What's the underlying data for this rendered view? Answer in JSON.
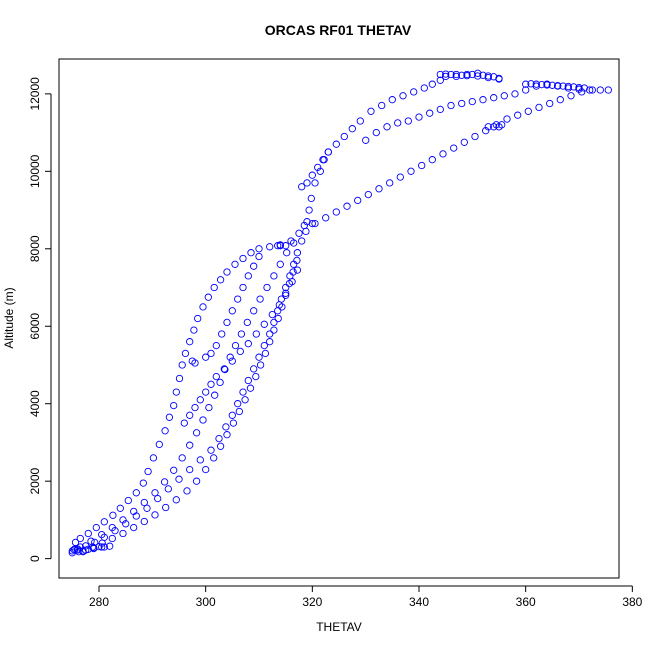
{
  "chart_data": {
    "type": "scatter",
    "title": "ORCAS RF01 THETAV",
    "xlabel": "THETAV",
    "ylabel": "Altitude (m)",
    "xlim": [
      272.5,
      377.5
    ],
    "ylim": [
      -500,
      12900
    ],
    "xticks": [
      280,
      300,
      320,
      340,
      360,
      380
    ],
    "yticks": [
      0,
      2000,
      4000,
      6000,
      8000,
      10000,
      12000
    ],
    "marker": "open-circle",
    "grid": false,
    "color": "#0000ff",
    "series": [
      {
        "name": "",
        "points": [
          [
            275,
            150
          ],
          [
            275.3,
            230
          ],
          [
            276.2,
            180
          ],
          [
            277.5,
            220
          ],
          [
            279,
            260
          ],
          [
            280.5,
            300
          ],
          [
            282,
            320
          ],
          [
            275.6,
            420
          ],
          [
            276.5,
            520
          ],
          [
            278,
            650
          ],
          [
            279.5,
            800
          ],
          [
            281,
            950
          ],
          [
            282.6,
            1120
          ],
          [
            284,
            1300
          ],
          [
            285.5,
            1500
          ],
          [
            287,
            1700
          ],
          [
            288.3,
            1950
          ],
          [
            289.2,
            2250
          ],
          [
            290.2,
            2600
          ],
          [
            291.3,
            2950
          ],
          [
            292.4,
            3300
          ],
          [
            293.2,
            3650
          ],
          [
            294,
            3950
          ],
          [
            294.5,
            4300
          ],
          [
            295.1,
            4650
          ],
          [
            295.6,
            5000
          ],
          [
            296.2,
            5300
          ],
          [
            297,
            5600
          ],
          [
            297.8,
            5900
          ],
          [
            298.5,
            6200
          ],
          [
            299.5,
            6500
          ],
          [
            300.5,
            6750
          ],
          [
            301.6,
            7000
          ],
          [
            302.8,
            7200
          ],
          [
            304,
            7400
          ],
          [
            305.5,
            7600
          ],
          [
            307,
            7750
          ],
          [
            308.5,
            7900
          ],
          [
            310,
            8000
          ],
          [
            312,
            8050
          ],
          [
            314,
            8080
          ],
          [
            316,
            8200
          ],
          [
            317.5,
            8400
          ],
          [
            318.5,
            8600
          ],
          [
            320,
            8650
          ],
          [
            319,
            8700
          ],
          [
            319.4,
            9000
          ],
          [
            319.8,
            9300
          ],
          [
            320.5,
            9700
          ],
          [
            321.5,
            10000
          ],
          [
            322.2,
            10300
          ],
          [
            323,
            10500
          ],
          [
            324.5,
            10700
          ],
          [
            326,
            10900
          ],
          [
            327.5,
            11100
          ],
          [
            329,
            11300
          ],
          [
            331,
            11550
          ],
          [
            333,
            11700
          ],
          [
            335,
            11850
          ],
          [
            337,
            11950
          ],
          [
            339,
            12050
          ],
          [
            341,
            12150
          ],
          [
            342.5,
            12250
          ],
          [
            344,
            12350
          ],
          [
            345,
            12450
          ],
          [
            347,
            12450
          ],
          [
            349,
            12500
          ],
          [
            351,
            12460
          ],
          [
            353,
            12420
          ],
          [
            355,
            12380
          ],
          [
            276,
            250
          ],
          [
            277.5,
            330
          ],
          [
            279.2,
            420
          ],
          [
            281,
            550
          ],
          [
            283,
            720
          ],
          [
            285,
            900
          ],
          [
            287,
            1100
          ],
          [
            289,
            1300
          ],
          [
            291,
            1550
          ],
          [
            293,
            1800
          ],
          [
            295,
            2050
          ],
          [
            297,
            2300
          ],
          [
            299,
            2550
          ],
          [
            301,
            2800
          ],
          [
            302.5,
            3100
          ],
          [
            303.8,
            3400
          ],
          [
            305,
            3700
          ],
          [
            306,
            4000
          ],
          [
            307,
            4300
          ],
          [
            308,
            4600
          ],
          [
            309,
            4900
          ],
          [
            310,
            5200
          ],
          [
            311,
            5500
          ],
          [
            312,
            5800
          ],
          [
            312.8,
            6100
          ],
          [
            313.5,
            6400
          ],
          [
            314.2,
            6700
          ],
          [
            315,
            7000
          ],
          [
            315.8,
            7300
          ],
          [
            316.5,
            7600
          ],
          [
            317.2,
            7900
          ],
          [
            318,
            8200
          ],
          [
            318.8,
            8450
          ],
          [
            277,
            200
          ],
          [
            278.8,
            300
          ],
          [
            280.6,
            400
          ],
          [
            282.5,
            520
          ],
          [
            284.5,
            650
          ],
          [
            286.5,
            800
          ],
          [
            288.5,
            960
          ],
          [
            290.5,
            1130
          ],
          [
            292.5,
            1320
          ],
          [
            294.5,
            1520
          ],
          [
            296.5,
            1750
          ],
          [
            298.3,
            2000
          ],
          [
            300,
            2300
          ],
          [
            301.5,
            2600
          ],
          [
            302.8,
            2900
          ],
          [
            304,
            3200
          ],
          [
            305.2,
            3500
          ],
          [
            306.3,
            3800
          ],
          [
            307.4,
            4100
          ],
          [
            308.4,
            4400
          ],
          [
            309.4,
            4700
          ],
          [
            310.3,
            5000
          ],
          [
            311.2,
            5300
          ],
          [
            312,
            5600
          ],
          [
            312.8,
            5900
          ],
          [
            313.6,
            6200
          ],
          [
            314.3,
            6500
          ],
          [
            315,
            6800
          ],
          [
            315.7,
            7100
          ],
          [
            316.4,
            7400
          ],
          [
            317.1,
            7700
          ],
          [
            276.5,
            300
          ],
          [
            278.5,
            450
          ],
          [
            280.5,
            620
          ],
          [
            282.5,
            800
          ],
          [
            284.5,
            1000
          ],
          [
            286.5,
            1220
          ],
          [
            288.5,
            1450
          ],
          [
            290.5,
            1700
          ],
          [
            292.3,
            1980
          ],
          [
            294,
            2280
          ],
          [
            295.6,
            2600
          ],
          [
            297,
            2930
          ],
          [
            298.3,
            3250
          ],
          [
            299.5,
            3580
          ],
          [
            300.6,
            3900
          ],
          [
            301.7,
            4220
          ],
          [
            302.7,
            4550
          ],
          [
            303.6,
            4880
          ],
          [
            304.6,
            5200
          ],
          [
            305.6,
            5500
          ],
          [
            306.7,
            5800
          ],
          [
            307.8,
            6100
          ],
          [
            309,
            6400
          ],
          [
            310.2,
            6700
          ],
          [
            311.5,
            7000
          ],
          [
            312.8,
            7300
          ],
          [
            314,
            7600
          ],
          [
            315.2,
            7900
          ],
          [
            316.5,
            8150
          ],
          [
            302,
            4700
          ],
          [
            303.5,
            4900
          ],
          [
            305,
            5100
          ],
          [
            306.5,
            5350
          ],
          [
            308,
            5550
          ],
          [
            309.5,
            5800
          ],
          [
            311,
            6050
          ],
          [
            312.5,
            6300
          ],
          [
            313.8,
            6550
          ],
          [
            315,
            6850
          ],
          [
            316.2,
            7150
          ],
          [
            317.2,
            7450
          ],
          [
            300,
            5200
          ],
          [
            301,
            5300
          ],
          [
            302,
            5500
          ],
          [
            303,
            5800
          ],
          [
            304,
            6100
          ],
          [
            305,
            6400
          ],
          [
            306,
            6700
          ],
          [
            307,
            7000
          ],
          [
            308,
            7300
          ],
          [
            309,
            7550
          ],
          [
            310,
            7800
          ],
          [
            320.5,
            8650
          ],
          [
            322.5,
            8800
          ],
          [
            324.5,
            8950
          ],
          [
            326.5,
            9100
          ],
          [
            328.5,
            9250
          ],
          [
            330.5,
            9400
          ],
          [
            332.5,
            9550
          ],
          [
            334.5,
            9700
          ],
          [
            336.5,
            9850
          ],
          [
            338.5,
            10000
          ],
          [
            340.5,
            10150
          ],
          [
            342.5,
            10300
          ],
          [
            344.5,
            10450
          ],
          [
            346.5,
            10600
          ],
          [
            348.5,
            10750
          ],
          [
            350.5,
            10900
          ],
          [
            352.5,
            11050
          ],
          [
            354.5,
            11200
          ],
          [
            356.5,
            11350
          ],
          [
            358.5,
            11450
          ],
          [
            360.5,
            11550
          ],
          [
            362.5,
            11650
          ],
          [
            364.5,
            11750
          ],
          [
            366.5,
            11850
          ],
          [
            368.5,
            11950
          ],
          [
            370.5,
            12050
          ],
          [
            372.5,
            12100
          ],
          [
            375.5,
            12100
          ],
          [
            353,
            11150
          ],
          [
            354,
            11150
          ],
          [
            355,
            11150
          ],
          [
            355.5,
            11200
          ],
          [
            318,
            9600
          ],
          [
            319,
            9700
          ],
          [
            320,
            9900
          ],
          [
            321,
            10100
          ],
          [
            322,
            10300
          ],
          [
            323,
            10500
          ],
          [
            330,
            10800
          ],
          [
            332,
            11000
          ],
          [
            334,
            11150
          ],
          [
            336,
            11250
          ],
          [
            338,
            11300
          ],
          [
            340,
            11400
          ],
          [
            342,
            11500
          ],
          [
            344,
            11600
          ],
          [
            346,
            11700
          ],
          [
            348,
            11750
          ],
          [
            350,
            11800
          ],
          [
            352,
            11850
          ],
          [
            354,
            11900
          ],
          [
            356,
            11950
          ],
          [
            358,
            12000
          ],
          [
            360,
            12100
          ],
          [
            362,
            12200
          ],
          [
            364,
            12250
          ],
          [
            366,
            12200
          ],
          [
            368,
            12150
          ],
          [
            370,
            12120
          ],
          [
            372,
            12100
          ],
          [
            374,
            12100
          ],
          [
            360,
            12250
          ],
          [
            361,
            12260
          ],
          [
            362,
            12250
          ],
          [
            363,
            12240
          ],
          [
            364,
            12230
          ],
          [
            365,
            12220
          ],
          [
            366,
            12210
          ],
          [
            367,
            12200
          ],
          [
            368,
            12190
          ],
          [
            369,
            12180
          ],
          [
            370,
            12160
          ],
          [
            371,
            12150
          ],
          [
            344,
            12500
          ],
          [
            345,
            12510
          ],
          [
            346,
            12500
          ],
          [
            347,
            12500
          ],
          [
            348,
            12480
          ],
          [
            349,
            12470
          ],
          [
            350,
            12500
          ],
          [
            351,
            12530
          ],
          [
            352,
            12480
          ],
          [
            353,
            12460
          ],
          [
            354,
            12440
          ],
          [
            355,
            12400
          ],
          [
            296,
            3500
          ],
          [
            297,
            3700
          ],
          [
            298,
            3900
          ],
          [
            299,
            4100
          ],
          [
            300,
            4300
          ],
          [
            301,
            4500
          ],
          [
            275,
            200
          ],
          [
            275.5,
            250
          ],
          [
            276,
            220
          ],
          [
            277,
            180
          ],
          [
            278,
            240
          ],
          [
            279,
            280
          ],
          [
            280,
            310
          ],
          [
            281,
            300
          ],
          [
            297.5,
            5100
          ],
          [
            298,
            5050
          ],
          [
            314,
            8100
          ],
          [
            315,
            8080
          ],
          [
            313.5,
            8080
          ]
        ]
      }
    ]
  }
}
